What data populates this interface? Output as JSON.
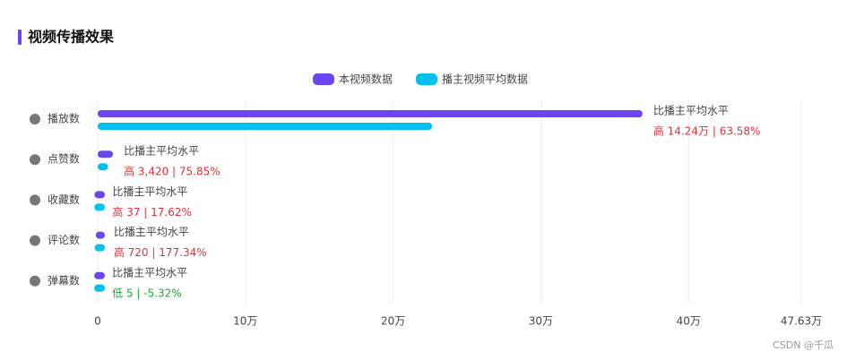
{
  "chart_data": {
    "type": "bar",
    "orientation": "horizontal",
    "title": "视频传播效果",
    "categories": [
      "播放数",
      "点赞数",
      "收藏数",
      "评论数",
      "弹幕数"
    ],
    "series": [
      {
        "name": "本视频数据",
        "color": "#6a45f0",
        "values": [
          36.64,
          0.7929,
          0.0247,
          0.1126,
          0.0089
        ]
      },
      {
        "name": "播主视频平均数据",
        "color": "#00c0f0",
        "values": [
          22.4,
          0.4509,
          0.021,
          0.0406,
          0.0094
        ]
      }
    ],
    "annotations": [
      {
        "label": "比播主平均水平",
        "text": "高 14.24万 | 63.58%",
        "color": "#e0303a"
      },
      {
        "label": "比播主平均水平",
        "text": "高 3,420 | 75.85%",
        "color": "#e0303a"
      },
      {
        "label": "比播主平均水平",
        "text": "高 37 | 17.62%",
        "color": "#e0303a"
      },
      {
        "label": "比播主平均水平",
        "text": "高 720 | 177.34%",
        "color": "#e0303a"
      },
      {
        "label": "比播主平均水平",
        "text": "低 5 | -5.32%",
        "color": "#1aaa3a"
      }
    ],
    "xlim": [
      0,
      47.63
    ],
    "xticks": [
      0,
      {
        "value": 10,
        "label": "10万"
      },
      {
        "value": 20,
        "label": "20万"
      },
      {
        "value": 30,
        "label": "30万"
      },
      {
        "value": 40,
        "label": "40万"
      },
      {
        "value": 47.63,
        "label": "47.63万"
      }
    ],
    "grid": true,
    "watermark": "CSDN @千瓜"
  }
}
